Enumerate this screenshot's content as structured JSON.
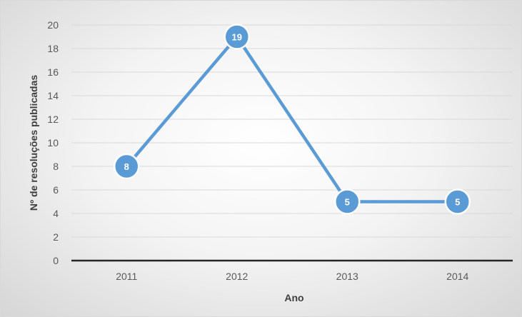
{
  "chart_data": {
    "type": "line",
    "categories": [
      "2011",
      "2012",
      "2013",
      "2014"
    ],
    "series": [
      {
        "values": [
          8,
          19,
          5,
          5
        ]
      }
    ],
    "data_labels": [
      "8",
      "19",
      "5",
      "5"
    ],
    "xlabel": "Ano",
    "ylabel": "Nº de resoluções publicadas",
    "ylim": [
      0,
      20
    ],
    "yticks": [
      "0",
      "2",
      "4",
      "6",
      "8",
      "10",
      "12",
      "14",
      "16",
      "18",
      "20"
    ],
    "grid": true,
    "legend": "none",
    "colors": {
      "line": "#5b9bd5",
      "marker": "#5b9bd5",
      "gridline": "#d9d9d9",
      "baseline": "#262626"
    }
  }
}
